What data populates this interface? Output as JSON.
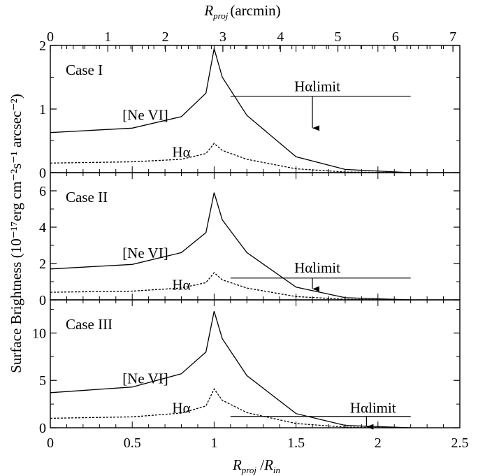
{
  "chart_data": {
    "type": "line",
    "x_axis": {
      "label_main": "R",
      "label_sub1": "proj",
      "label_sep": " /",
      "label_main2": "R",
      "label_sub2": "in",
      "range": [
        0,
        2.5
      ],
      "ticks": [
        0,
        0.5,
        1,
        1.5,
        2,
        2.5
      ],
      "tick_labels": [
        "0",
        "0.5",
        "1",
        "1.5",
        "2",
        "2.5"
      ]
    },
    "top_axis": {
      "label_main": "R",
      "label_sub": "proj",
      "label_unit": "(arcmin)",
      "range": [
        0,
        7.12
      ],
      "ticks": [
        0,
        1,
        2,
        3,
        4,
        5,
        6,
        7
      ],
      "tick_labels": [
        "0",
        "1",
        "2",
        "3",
        "4",
        "5",
        "6",
        "7"
      ]
    },
    "y_axis_label": "Surface Brightness  (10⁻¹⁷erg cm⁻²s⁻¹ arcsec⁻²)",
    "panels": [
      {
        "label": "Case I",
        "ylim": [
          0,
          2
        ],
        "yticks": [
          0,
          1,
          2
        ],
        "ytick_labels": [
          "0",
          "1",
          "2"
        ],
        "series": [
          {
            "name": "[Ne VI]",
            "style": "solid",
            "x": [
              0,
              0.5,
              0.8,
              0.95,
              1.0,
              1.05,
              1.2,
              1.5,
              1.8,
              2.2
            ],
            "y": [
              0.63,
              0.7,
              0.88,
              1.25,
              1.95,
              1.5,
              0.9,
              0.25,
              0.05,
              0.0
            ]
          },
          {
            "name": "Hα",
            "style": "dashed",
            "x": [
              0,
              0.5,
              0.8,
              0.95,
              1.0,
              1.05,
              1.2,
              1.5,
              1.8,
              2.2
            ],
            "y": [
              0.15,
              0.17,
              0.21,
              0.3,
              0.46,
              0.35,
              0.21,
              0.06,
              0.01,
              0.0
            ]
          }
        ],
        "limit": {
          "label": "Hαlimit",
          "y": 1.2,
          "x_start": 1.1,
          "x_end": 2.2,
          "arrow_x": 1.6,
          "arrow_to_y": 0.7
        },
        "ne_label_pos": [
          0.58,
          0.83
        ],
        "ha_label_pos": [
          0.8,
          0.25
        ],
        "limit_label_pos": [
          1.63,
          1.28
        ]
      },
      {
        "label": "Case II",
        "ylim": [
          0,
          7
        ],
        "yticks": [
          0,
          2,
          4,
          6
        ],
        "ytick_labels": [
          "0",
          "2",
          "4",
          "6"
        ],
        "series": [
          {
            "name": "[Ne VI]",
            "style": "solid",
            "x": [
              0,
              0.5,
              0.8,
              0.95,
              1.0,
              1.05,
              1.2,
              1.5,
              1.8,
              2.2
            ],
            "y": [
              1.7,
              1.95,
              2.6,
              3.7,
              5.9,
              4.4,
              2.6,
              0.7,
              0.12,
              0.0
            ]
          },
          {
            "name": "Hα",
            "style": "dashed",
            "x": [
              0,
              0.5,
              0.8,
              0.95,
              1.0,
              1.05,
              1.2,
              1.5,
              1.8,
              2.2
            ],
            "y": [
              0.42,
              0.48,
              0.65,
              0.95,
              1.5,
              1.1,
              0.65,
              0.18,
              0.03,
              0.0
            ]
          }
        ],
        "limit": {
          "label": "Hαlimit",
          "y": 1.2,
          "x_start": 1.1,
          "x_end": 2.2,
          "arrow_x": 1.6,
          "arrow_to_y": 0.6
        },
        "ne_label_pos": [
          0.58,
          2.3
        ],
        "ha_label_pos": [
          0.8,
          0.55
        ],
        "limit_label_pos": [
          1.63,
          1.5
        ]
      },
      {
        "label": "Case III",
        "ylim": [
          0,
          13.5
        ],
        "yticks": [
          0,
          5,
          10
        ],
        "ytick_labels": [
          "0",
          "5",
          "10"
        ],
        "series": [
          {
            "name": "[Ne VI]",
            "style": "solid",
            "x": [
              0,
              0.5,
              0.8,
              0.95,
              1.0,
              1.05,
              1.2,
              1.5,
              1.8,
              2.2
            ],
            "y": [
              3.7,
              4.3,
              5.7,
              8.0,
              12.3,
              9.4,
              5.5,
              1.5,
              0.25,
              0.0
            ]
          },
          {
            "name": "Hα",
            "style": "dashed",
            "x": [
              0,
              0.5,
              0.8,
              0.95,
              1.0,
              1.05,
              1.2,
              1.5,
              1.8,
              2.2
            ],
            "y": [
              1.0,
              1.15,
              1.55,
              2.3,
              4.1,
              2.9,
              1.6,
              0.45,
              0.07,
              0.0
            ]
          }
        ],
        "limit": {
          "label": "Hαlimit",
          "y": 1.2,
          "x_start": 1.1,
          "x_end": 2.2,
          "arrow_x": 1.93,
          "arrow_to_y": 0.1
        },
        "ne_label_pos": [
          0.58,
          4.7
        ],
        "ha_label_pos": [
          0.8,
          1.6
        ],
        "limit_label_pos": [
          1.97,
          1.6
        ]
      }
    ]
  }
}
